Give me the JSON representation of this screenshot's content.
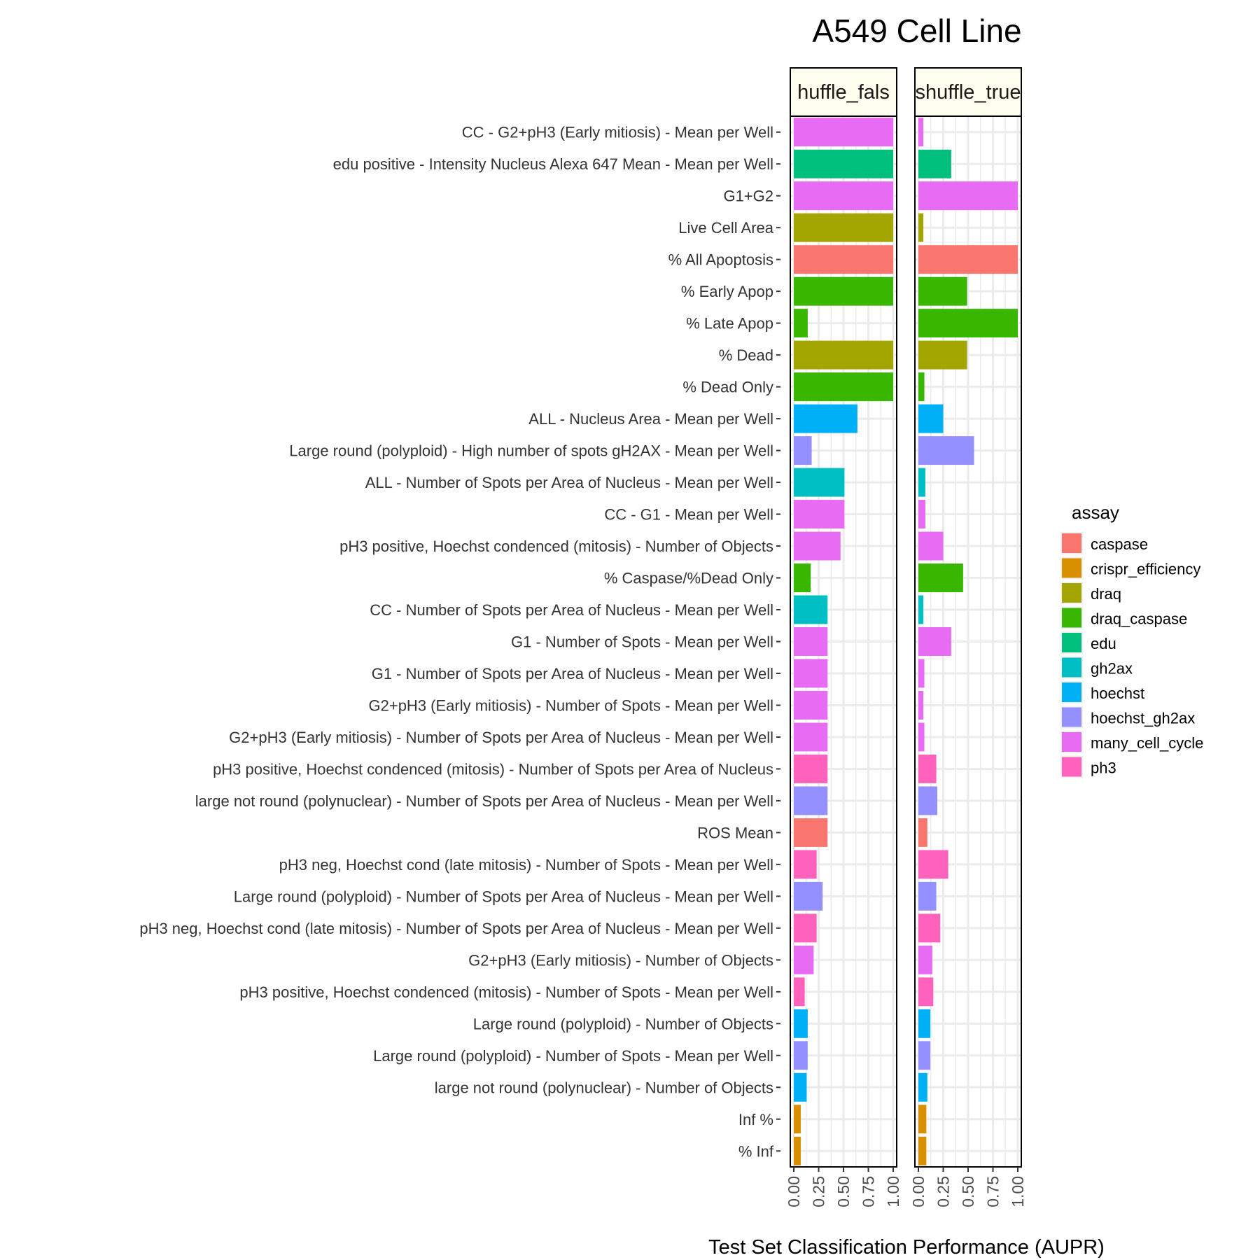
{
  "chart_data": {
    "type": "bar",
    "orientation": "horizontal",
    "title": "A549 Cell Line",
    "xlabel": "Test Set Classification Performance (AUPR)",
    "ylabel": "",
    "xlim": [
      0,
      1
    ],
    "xticks": [
      "0.00",
      "0.25",
      "0.50",
      "0.75",
      "1.00"
    ],
    "grid": true,
    "legend_position": "right",
    "legend_title": "assay",
    "assays": [
      {
        "name": "caspase",
        "color": "#F8766D"
      },
      {
        "name": "crispr_efficiency",
        "color": "#D89000"
      },
      {
        "name": "draq",
        "color": "#A3A500"
      },
      {
        "name": "draq_caspase",
        "color": "#39B600"
      },
      {
        "name": "edu",
        "color": "#00BF7D"
      },
      {
        "name": "gh2ax",
        "color": "#00BFC4"
      },
      {
        "name": "hoechst",
        "color": "#00B0F6"
      },
      {
        "name": "hoechst_gh2ax",
        "color": "#9590FF"
      },
      {
        "name": "many_cell_cycle",
        "color": "#E76BF3"
      },
      {
        "name": "ph3",
        "color": "#FF62BC"
      }
    ],
    "categories": [
      "CC - G2+pH3 (Early mitiosis) - Mean per Well",
      "edu positive - Intensity Nucleus Alexa 647 Mean - Mean per Well",
      "G1+G2",
      "Live Cell Area",
      "% All Apoptosis",
      "% Early Apop",
      "% Late Apop",
      "% Dead",
      "% Dead Only",
      "ALL - Nucleus Area - Mean per Well",
      "Large round (polyploid) - High number of spots gH2AX - Mean per Well",
      "ALL - Number of Spots per Area of Nucleus - Mean per Well",
      "CC - G1 - Mean per Well",
      "pH3 positive, Hoechst condenced (mitosis) - Number of Objects",
      "% Caspase/%Dead Only",
      "CC - Number of Spots per Area of Nucleus - Mean per Well",
      "G1 - Number of Spots - Mean per Well",
      "G1 - Number of Spots per Area of Nucleus - Mean per Well",
      "G2+pH3 (Early mitiosis) - Number of Spots - Mean per Well",
      "G2+pH3 (Early mitiosis) - Number of Spots per Area of Nucleus - Mean per Well",
      "pH3 positive, Hoechst condenced (mitosis) - Number of Spots per Area of Nucleus",
      "large not round (polynuclear) - Number of Spots per Area of Nucleus - Mean per Well",
      "ROS Mean",
      "pH3 neg, Hoechst cond (late mitosis) - Number of Spots - Mean per Well",
      "Large round (polyploid) - Number of Spots per Area of Nucleus - Mean per Well",
      "pH3 neg, Hoechst cond (late mitosis) - Number of Spots per Area of Nucleus - Mean per Well",
      "G2+pH3 (Early mitiosis) - Number of Objects",
      "pH3 positive, Hoechst condenced (mitosis) - Number of Spots - Mean per Well",
      "Large round (polyploid) - Number of Objects",
      "Large round (polyploid) - Number of Spots - Mean per Well",
      "large not round (polynuclear) - Number of Objects",
      "Inf %",
      "% Inf"
    ],
    "bar_assay": [
      "many_cell_cycle",
      "edu",
      "many_cell_cycle",
      "draq",
      "caspase",
      "draq_caspase",
      "draq_caspase",
      "draq",
      "draq_caspase",
      "hoechst",
      "hoechst_gh2ax",
      "gh2ax",
      "many_cell_cycle",
      "many_cell_cycle",
      "draq_caspase",
      "gh2ax",
      "many_cell_cycle",
      "many_cell_cycle",
      "many_cell_cycle",
      "many_cell_cycle",
      "ph3",
      "hoechst_gh2ax",
      "caspase",
      "ph3",
      "hoechst_gh2ax",
      "ph3",
      "many_cell_cycle",
      "ph3",
      "hoechst",
      "hoechst_gh2ax",
      "hoechst",
      "crispr_efficiency",
      "crispr_efficiency"
    ],
    "facets": [
      {
        "name": "shuffle_false",
        "strip_label": "huffle_fals",
        "values": [
          1.0,
          1.0,
          1.0,
          1.0,
          1.0,
          1.0,
          0.14,
          1.0,
          1.0,
          0.64,
          0.18,
          0.51,
          0.51,
          0.47,
          0.17,
          0.34,
          0.34,
          0.34,
          0.34,
          0.34,
          0.34,
          0.34,
          0.34,
          0.23,
          0.29,
          0.23,
          0.2,
          0.11,
          0.14,
          0.14,
          0.13,
          0.07,
          0.07
        ]
      },
      {
        "name": "shuffle_true",
        "strip_label": "shuffle_true",
        "values": [
          0.05,
          0.33,
          1.0,
          0.05,
          1.0,
          0.49,
          1.0,
          0.49,
          0.06,
          0.25,
          0.56,
          0.07,
          0.07,
          0.25,
          0.45,
          0.05,
          0.33,
          0.06,
          0.05,
          0.06,
          0.18,
          0.19,
          0.09,
          0.3,
          0.18,
          0.22,
          0.14,
          0.15,
          0.12,
          0.12,
          0.09,
          0.08,
          0.08
        ]
      }
    ]
  }
}
